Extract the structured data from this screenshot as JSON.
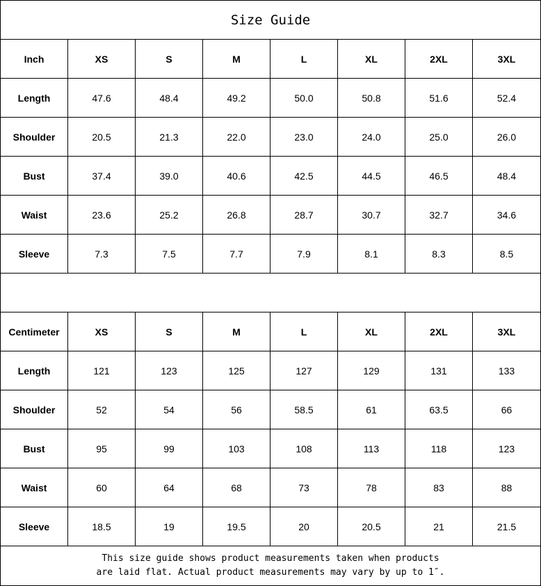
{
  "title": "Size Guide",
  "sizes": [
    "XS",
    "S",
    "M",
    "L",
    "XL",
    "2XL",
    "3XL"
  ],
  "tables": [
    {
      "unit": "Inch",
      "rows": [
        {
          "label": "Length",
          "values": [
            "47.6",
            "48.4",
            "49.2",
            "50.0",
            "50.8",
            "51.6",
            "52.4"
          ]
        },
        {
          "label": "Shoulder",
          "values": [
            "20.5",
            "21.3",
            "22.0",
            "23.0",
            "24.0",
            "25.0",
            "26.0"
          ]
        },
        {
          "label": "Bust",
          "values": [
            "37.4",
            "39.0",
            "40.6",
            "42.5",
            "44.5",
            "46.5",
            "48.4"
          ]
        },
        {
          "label": "Waist",
          "values": [
            "23.6",
            "25.2",
            "26.8",
            "28.7",
            "30.7",
            "32.7",
            "34.6"
          ]
        },
        {
          "label": "Sleeve",
          "values": [
            "7.3",
            "7.5",
            "7.7",
            "7.9",
            "8.1",
            "8.3",
            "8.5"
          ]
        }
      ]
    },
    {
      "unit": "Centimeter",
      "rows": [
        {
          "label": "Length",
          "values": [
            "121",
            "123",
            "125",
            "127",
            "129",
            "131",
            "133"
          ]
        },
        {
          "label": "Shoulder",
          "values": [
            "52",
            "54",
            "56",
            "58.5",
            "61",
            "63.5",
            "66"
          ]
        },
        {
          "label": "Bust",
          "values": [
            "95",
            "99",
            "103",
            "108",
            "113",
            "118",
            "123"
          ]
        },
        {
          "label": "Waist",
          "values": [
            "60",
            "64",
            "68",
            "73",
            "78",
            "83",
            "88"
          ]
        },
        {
          "label": "Sleeve",
          "values": [
            "18.5",
            "19",
            "19.5",
            "20",
            "20.5",
            "21",
            "21.5"
          ]
        }
      ]
    }
  ],
  "note": {
    "line1": "This size guide shows product measurements taken when products",
    "line2": "are laid flat. Actual product measurements may vary by up to 1″."
  }
}
